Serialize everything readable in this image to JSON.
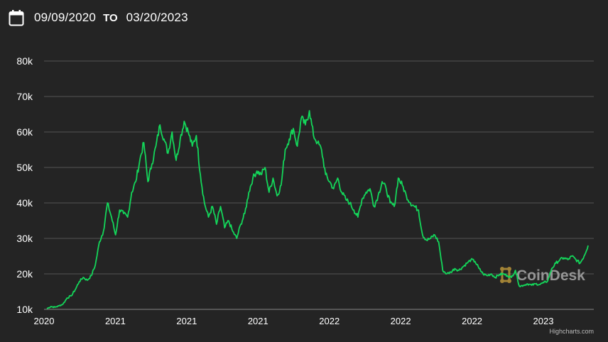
{
  "date_range": {
    "start": "09/09/2020",
    "separator": "TO",
    "end": "03/20/2023",
    "icon": "calendar-icon"
  },
  "watermark": {
    "text": "CoinDesk",
    "icon": "coindesk-logo-icon",
    "accent_color": "#b8943a"
  },
  "credit": "Highcharts.com",
  "colors": {
    "background": "#242424",
    "line": "#14d65a",
    "grid": "#555555",
    "text": "#ffffff"
  },
  "chart_data": {
    "type": "line",
    "title": "",
    "xlabel": "",
    "ylabel": "",
    "ylim": [
      10000,
      80000
    ],
    "y_ticks": [
      10000,
      20000,
      30000,
      40000,
      50000,
      60000,
      70000,
      80000
    ],
    "y_tick_labels": [
      "10k",
      "20k",
      "30k",
      "40k",
      "50k",
      "60k",
      "70k",
      "80k"
    ],
    "x_tick_labels": [
      "2020",
      "2021",
      "2021",
      "2021",
      "2022",
      "2022",
      "2022",
      "2023"
    ],
    "grid": true,
    "legend": "none",
    "series": [
      {
        "values": [
          10200,
          10800,
          10600,
          11000,
          11500,
          13200,
          13800,
          15500,
          17800,
          19000,
          18200,
          19500,
          22500,
          29000,
          32000,
          40000,
          36000,
          31000,
          38000,
          37000,
          36000,
          43000,
          46000,
          52000,
          57000,
          46000,
          51000,
          56000,
          62000,
          58000,
          54000,
          60000,
          52000,
          58000,
          63000,
          60000,
          56000,
          59000,
          48000,
          40000,
          36000,
          39000,
          34000,
          39000,
          33000,
          35000,
          32000,
          30000,
          34000,
          37000,
          43000,
          47000,
          49000,
          48000,
          50000,
          43000,
          47000,
          42000,
          45000,
          55000,
          58000,
          61000,
          56000,
          64000,
          62000,
          66000,
          59000,
          57000,
          55000,
          48000,
          46000,
          44000,
          47000,
          43000,
          41000,
          40000,
          38000,
          36000,
          41000,
          43000,
          44000,
          39000,
          42000,
          46000,
          44000,
          40000,
          39000,
          47000,
          45000,
          42000,
          40000,
          39000,
          38000,
          31000,
          29500,
          30000,
          31000,
          29000,
          21000,
          20000,
          20500,
          21500,
          21000,
          22000,
          23000,
          24000,
          23500,
          21500,
          20000,
          19500,
          20000,
          19000,
          19800,
          20000,
          19500,
          19000,
          21000,
          16500,
          16800,
          17200,
          16800,
          17200,
          17000,
          17500,
          18000,
          21500,
          23000,
          24000,
          24500,
          24000,
          25000,
          24000,
          23000,
          25000,
          28000
        ]
      }
    ]
  }
}
